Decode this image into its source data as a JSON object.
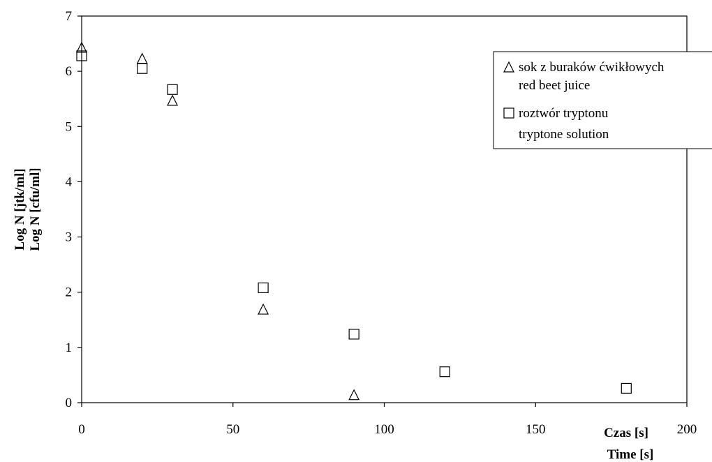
{
  "chart_data": {
    "type": "scatter",
    "title": "",
    "xlabel": [
      "Czas [s]",
      "Time [s]"
    ],
    "ylabel": [
      "Log N [jtk/ml]",
      "Log N [cfu/ml]"
    ],
    "xlim": [
      0,
      200
    ],
    "ylim": [
      0,
      7
    ],
    "xticks": [
      "0",
      "50",
      "100",
      "150",
      "200"
    ],
    "yticks": [
      "0",
      "1",
      "2",
      "3",
      "4",
      "5",
      "6",
      "7"
    ],
    "grid": false,
    "legend_position": "top-right",
    "series": [
      {
        "name": [
          "sok z buraków ćwikłowych",
          "red beet juice"
        ],
        "marker": "triangle",
        "x": [
          0,
          20,
          30,
          60,
          90
        ],
        "y": [
          6.42,
          6.22,
          5.46,
          1.68,
          0.13
        ]
      },
      {
        "name": [
          "roztwór tryptonu",
          "tryptone solution"
        ],
        "marker": "square",
        "x": [
          0,
          20,
          30,
          60,
          90,
          120,
          180
        ],
        "y": [
          6.28,
          6.05,
          5.67,
          2.08,
          1.24,
          0.56,
          0.26
        ]
      }
    ]
  }
}
